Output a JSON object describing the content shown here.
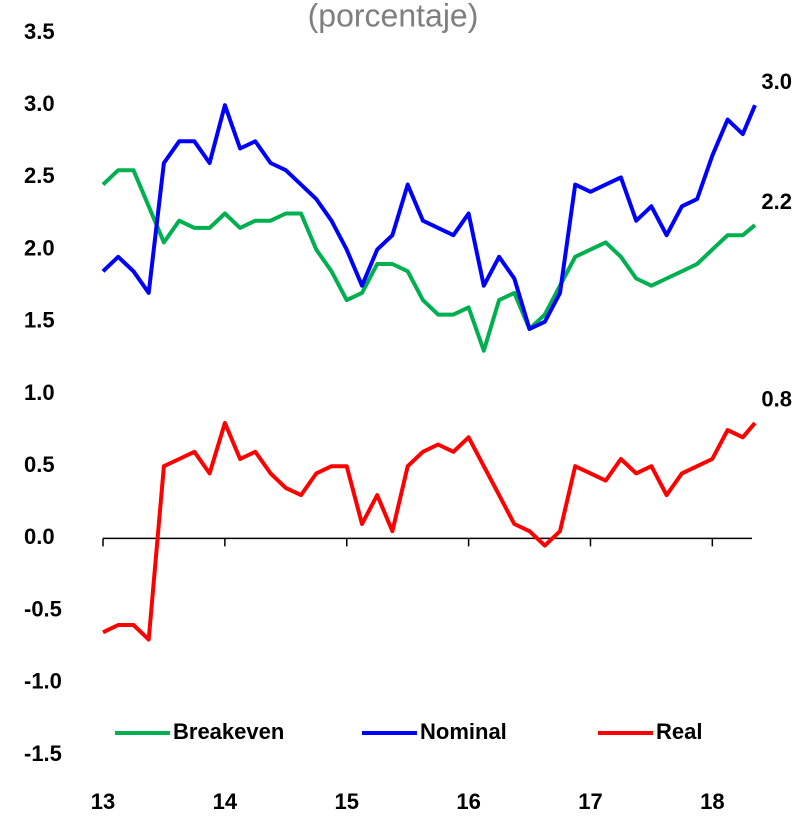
{
  "chart_data": {
    "type": "line",
    "title": "(porcentaje)",
    "x": [
      13,
      13.125,
      13.25,
      13.375,
      13.5,
      13.625,
      13.75,
      13.875,
      14,
      14.125,
      14.25,
      14.375,
      14.5,
      14.625,
      14.75,
      14.875,
      15,
      15.125,
      15.25,
      15.375,
      15.5,
      15.625,
      15.75,
      15.875,
      16,
      16.125,
      16.25,
      16.375,
      16.5,
      16.625,
      16.75,
      16.875,
      17,
      17.125,
      17.25,
      17.375,
      17.5,
      17.625,
      17.75,
      17.875,
      18,
      18.125,
      18.25,
      18.35
    ],
    "series": [
      {
        "name": "Breakeven",
        "color": "#00b050",
        "values": [
          2.45,
          2.55,
          2.55,
          2.3,
          2.05,
          2.2,
          2.15,
          2.15,
          2.25,
          2.15,
          2.2,
          2.2,
          2.25,
          2.25,
          2.0,
          1.85,
          1.65,
          1.7,
          1.9,
          1.9,
          1.85,
          1.65,
          1.55,
          1.55,
          1.6,
          1.3,
          1.65,
          1.7,
          1.45,
          1.55,
          1.75,
          1.95,
          2.0,
          2.05,
          1.95,
          1.8,
          1.75,
          1.8,
          1.85,
          1.9,
          2.0,
          2.1,
          2.1,
          2.17
        ],
        "value_labels": [
          null,
          null,
          null,
          null,
          null,
          null,
          null,
          null,
          null,
          null,
          null,
          null,
          null,
          null,
          null,
          null,
          null,
          null,
          null,
          null,
          null,
          null,
          null,
          null,
          null,
          null,
          null,
          null,
          null,
          null,
          null,
          null,
          null,
          null,
          null,
          null,
          null,
          null,
          null,
          null,
          null,
          null,
          null,
          "2.2"
        ]
      },
      {
        "name": "Nominal",
        "color": "#0000ff",
        "values": [
          1.85,
          1.95,
          1.85,
          1.7,
          2.6,
          2.75,
          2.75,
          2.6,
          3.0,
          2.7,
          2.75,
          2.6,
          2.55,
          2.45,
          2.35,
          2.2,
          2.0,
          1.75,
          2.0,
          2.1,
          2.45,
          2.2,
          2.15,
          2.1,
          2.25,
          1.75,
          1.95,
          1.8,
          1.45,
          1.5,
          1.7,
          2.45,
          2.4,
          2.45,
          2.5,
          2.2,
          2.3,
          2.1,
          2.3,
          2.35,
          2.65,
          2.9,
          2.8,
          3.0
        ],
        "value_labels": [
          null,
          null,
          null,
          null,
          null,
          null,
          null,
          null,
          null,
          null,
          null,
          null,
          null,
          null,
          null,
          null,
          null,
          null,
          null,
          null,
          null,
          null,
          null,
          null,
          null,
          null,
          null,
          null,
          null,
          null,
          null,
          null,
          null,
          null,
          null,
          null,
          null,
          null,
          null,
          null,
          null,
          null,
          null,
          "3.0"
        ]
      },
      {
        "name": "Real",
        "color": "#ff0000",
        "values": [
          -0.65,
          -0.6,
          -0.6,
          -0.7,
          0.5,
          0.55,
          0.6,
          0.45,
          0.8,
          0.55,
          0.6,
          0.45,
          0.35,
          0.3,
          0.45,
          0.5,
          0.5,
          0.1,
          0.3,
          0.05,
          0.5,
          0.6,
          0.65,
          0.6,
          0.7,
          0.5,
          0.3,
          0.1,
          0.05,
          -0.05,
          0.05,
          0.5,
          0.45,
          0.4,
          0.55,
          0.45,
          0.5,
          0.3,
          0.45,
          0.5,
          0.55,
          0.75,
          0.7,
          0.8
        ],
        "value_labels": [
          null,
          null,
          null,
          null,
          null,
          null,
          null,
          null,
          null,
          null,
          null,
          null,
          null,
          null,
          null,
          null,
          null,
          null,
          null,
          null,
          null,
          null,
          null,
          null,
          null,
          null,
          null,
          null,
          null,
          null,
          null,
          null,
          null,
          null,
          null,
          null,
          null,
          null,
          null,
          null,
          null,
          null,
          null,
          "0.8"
        ]
      }
    ],
    "xlim": [
      13,
      18.35
    ],
    "xticks": [
      13,
      14,
      15,
      16,
      17,
      18
    ],
    "ylim": [
      -1.5,
      3.5
    ],
    "yticks": [
      -1.5,
      {
        "value": -1,
        "label": "-1.0"
      },
      -0.5,
      {
        "value": 0,
        "label": "0.0"
      },
      0.5,
      {
        "value": 1,
        "label": "1.0"
      },
      1.5,
      {
        "value": 2,
        "label": "2.0"
      },
      2.5,
      {
        "value": 3,
        "label": "3.0"
      },
      3.5
    ],
    "legend": "bottom"
  }
}
